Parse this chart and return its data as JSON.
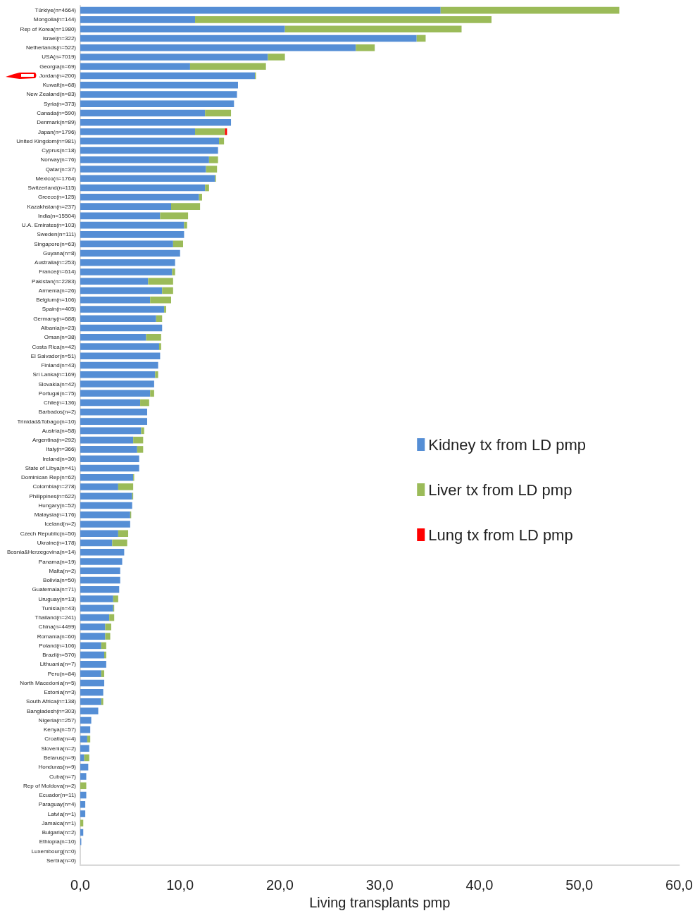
{
  "chart_data": {
    "type": "bar",
    "orientation": "horizontal",
    "stacked": true,
    "xlabel": "Living transplants pmp",
    "categories": [
      "Türkiye(n=4664)",
      "Mongolia(n=144)",
      "Rep of Korea(n=1980)",
      "Israel(n=322)",
      "Netherlands(n=522)",
      "USA(n=7019)",
      "Georgia(n=69)",
      "Jordan(n=200)",
      "Kuwait(n=68)",
      "New Zealand(n=83)",
      "Syria(n=373)",
      "Canada(n=590)",
      "Denmark(n=89)",
      "Japan(n=1796)",
      "United Kingdom(n=981)",
      "Cyprus(n=18)",
      "Norway(n=76)",
      "Qatar(n=37)",
      "Mexico(n=1764)",
      "Switzerland(n=115)",
      "Greece(n=125)",
      "Kazakhstan(n=237)",
      "India(n=15504)",
      "U.A. Emirates(n=103)",
      "Sweden(n=111)",
      "Singapore(n=63)",
      "Guyana(n=8)",
      "Australia(n=253)",
      "France(n=614)",
      "Pakistan(n=2283)",
      "Armenia(n=26)",
      "Belgium(n=106)",
      "Spain(n=405)",
      "Germany(n=688)",
      "Albania(n=23)",
      "Oman(n=38)",
      "Costa Rica(n=42)",
      "El Salvador(n=51)",
      "Finland(n=43)",
      "Sri Lanka(n=169)",
      "Slovakia(n=42)",
      "Portugal(n=75)",
      "Chile(n=136)",
      "Barbados(n=2)",
      "Trinidad&Tobago(n=10)",
      "Austria(n=58)",
      "Argentina(n=292)",
      "Italy(n=366)",
      "Ireland(n=30)",
      "State of Libya(n=41)",
      "Dominican Rep(n=62)",
      "Colombia(n=278)",
      "Philippines(n=622)",
      "Hungary(n=52)",
      "Malaysia(n=176)",
      "Iceland(n=2)",
      "Czech Republic(n=50)",
      "Ukraine(n=178)",
      "Bosnia&Herzegovina(n=14)",
      "Panama(n=19)",
      "Malta(n=2)",
      "Bolivia(n=50)",
      "Guatemala(n=71)",
      "Uruguay(n=13)",
      "Tunisia(n=43)",
      "Thailand(n=241)",
      "China(n=4499)",
      "Romania(n=60)",
      "Poland(n=106)",
      "Brazil(n=570)",
      "Lithuania(n=7)",
      "Peru(n=84)",
      "North Macedonia(n=5)",
      "Estonia(n=3)",
      "South Africa(n=138)",
      "Bangladesh(n=303)",
      "Nigeria(n=257)",
      "Kenya(n=57)",
      "Croatia(n=4)",
      "Slovenia(n=2)",
      "Belarus(n=9)",
      "Honduras(n=9)",
      "Cuba(n=7)",
      "Rep of Moldova(n=2)",
      "Ecuador(n=11)",
      "Paraguay(n=4)",
      "Latvia(n=1)",
      "Jamaica(n=1)",
      "Bulgaria(n=2)",
      "Ethiopia(n=10)",
      "Luxembourg(n=0)",
      "Serbia(n=0)"
    ],
    "series": [
      {
        "name": "Kidney tx from LD pmp",
        "color": "#558ed5",
        "values": [
          36.1,
          11.5,
          20.5,
          33.7,
          27.6,
          18.8,
          11.0,
          17.5,
          15.8,
          15.7,
          15.4,
          12.5,
          15.1,
          11.5,
          13.9,
          13.8,
          12.9,
          12.6,
          13.5,
          12.5,
          11.9,
          9.1,
          8.0,
          10.4,
          10.4,
          9.3,
          10.0,
          9.5,
          9.2,
          6.8,
          8.2,
          7.0,
          8.4,
          7.6,
          8.2,
          6.6,
          7.9,
          8.0,
          7.8,
          7.5,
          7.4,
          7.0,
          6.0,
          6.7,
          6.7,
          6.1,
          5.3,
          5.7,
          5.9,
          5.9,
          5.3,
          3.8,
          5.2,
          5.2,
          5.0,
          5.0,
          3.8,
          3.2,
          4.4,
          4.2,
          4.0,
          4.0,
          3.9,
          3.3,
          3.3,
          2.9,
          2.5,
          2.5,
          2.1,
          2.4,
          2.6,
          2.1,
          2.4,
          2.3,
          2.1,
          1.8,
          1.1,
          1.0,
          0.7,
          0.9,
          0.4,
          0.8,
          0.6,
          null,
          0.6,
          0.5,
          0.5,
          null,
          0.3,
          0.1,
          0,
          0
        ]
      },
      {
        "name": "Liver tx from LD pmp",
        "color": "#9bbb59",
        "values": [
          17.9,
          29.7,
          17.7,
          0.9,
          1.9,
          1.7,
          7.6,
          0.1,
          null,
          null,
          null,
          2.6,
          null,
          3.0,
          0.5,
          null,
          0.9,
          1.1,
          0.1,
          0.4,
          0.3,
          2.9,
          2.8,
          0.3,
          null,
          1.0,
          null,
          null,
          0.3,
          2.5,
          1.1,
          2.1,
          0.2,
          0.6,
          null,
          1.5,
          0.2,
          null,
          null,
          0.3,
          null,
          0.4,
          0.9,
          null,
          null,
          0.3,
          1.0,
          0.6,
          null,
          null,
          0.1,
          1.5,
          0.1,
          null,
          0.1,
          null,
          1.0,
          1.5,
          null,
          null,
          null,
          null,
          null,
          0.5,
          0.1,
          0.5,
          0.6,
          0.5,
          0.5,
          0.2,
          null,
          0.3,
          null,
          null,
          0.2,
          null,
          null,
          null,
          0.3,
          null,
          0.5,
          null,
          null,
          0.6,
          null,
          null,
          null,
          0.3,
          null,
          null,
          null,
          null
        ]
      },
      {
        "name": "Lung tx from LD pmp",
        "color": "#ff0000",
        "values": [
          null,
          null,
          null,
          null,
          null,
          null,
          null,
          null,
          null,
          null,
          null,
          null,
          null,
          0.2,
          null,
          null,
          null,
          null,
          null,
          null,
          null,
          null,
          null,
          null,
          null,
          null,
          null,
          null,
          null,
          null,
          null,
          null,
          null,
          null,
          null,
          null,
          null,
          null,
          null,
          null,
          null,
          null,
          null,
          null,
          null,
          null,
          null,
          null,
          null,
          null,
          null,
          null,
          null,
          null,
          null,
          null,
          null,
          null,
          null,
          null,
          null,
          null,
          null,
          null,
          null,
          null,
          null,
          null,
          null,
          null,
          null,
          null,
          null,
          null,
          null,
          null,
          null,
          null,
          null,
          null,
          null,
          null,
          null,
          null,
          null,
          null,
          null,
          null,
          null,
          null,
          null,
          null
        ]
      }
    ],
    "xlim": [
      0,
      60
    ],
    "xticks": [
      {
        "value": 0,
        "label": "0,0"
      },
      {
        "value": 10,
        "label": "10,0"
      },
      {
        "value": 20,
        "label": "20,0"
      },
      {
        "value": 30,
        "label": "30,0"
      },
      {
        "value": 40,
        "label": "40,0"
      },
      {
        "value": 50,
        "label": "50,0"
      },
      {
        "value": 60,
        "label": "60,0"
      }
    ],
    "grid": false,
    "legend": "right"
  }
}
